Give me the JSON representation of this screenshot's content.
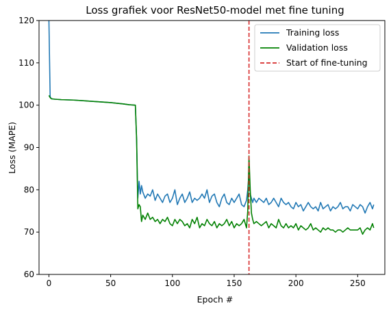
{
  "chart_data": {
    "type": "line",
    "title": "Loss grafiek voor ResNet50-model met fine tuning",
    "xlabel": "Epoch #",
    "ylabel": "Loss (MAPE)",
    "xlim": [
      -8,
      272
    ],
    "ylim": [
      60,
      120
    ],
    "xticks": [
      0,
      50,
      100,
      150,
      200,
      250
    ],
    "yticks": [
      60,
      70,
      80,
      90,
      100,
      110,
      120
    ],
    "grid": false,
    "legend_position": "top-right",
    "vline": {
      "x": 162,
      "name": "Start of fine-tuning",
      "color": "#d62728",
      "style": "dashed"
    },
    "series": [
      {
        "name": "Training loss",
        "color": "#1f77b4",
        "x": [
          0,
          1,
          2,
          5,
          10,
          20,
          30,
          40,
          50,
          60,
          65,
          70,
          71,
          72,
          73,
          74,
          75,
          76,
          78,
          80,
          82,
          84,
          86,
          88,
          90,
          92,
          94,
          96,
          98,
          100,
          102,
          104,
          106,
          108,
          110,
          112,
          114,
          116,
          118,
          120,
          122,
          124,
          126,
          128,
          130,
          132,
          134,
          136,
          138,
          140,
          142,
          144,
          146,
          148,
          150,
          152,
          154,
          156,
          158,
          160,
          161,
          162,
          163,
          164,
          165,
          166,
          168,
          170,
          172,
          174,
          176,
          178,
          180,
          182,
          184,
          186,
          188,
          190,
          192,
          194,
          196,
          198,
          200,
          202,
          204,
          206,
          208,
          210,
          212,
          214,
          216,
          218,
          220,
          222,
          224,
          226,
          228,
          230,
          232,
          234,
          236,
          238,
          240,
          242,
          244,
          246,
          248,
          250,
          252,
          254,
          256,
          258,
          260,
          262,
          263
        ],
        "values": [
          120,
          102,
          101.5,
          101.4,
          101.3,
          101.2,
          101,
          100.8,
          100.6,
          100.3,
          100.1,
          100,
          92,
          78,
          82,
          79,
          81,
          79.5,
          78,
          79,
          78.5,
          80,
          77.5,
          79,
          78,
          77,
          78.5,
          79,
          77,
          78,
          80,
          76.5,
          78,
          79,
          77,
          78,
          79.5,
          77,
          78,
          77.5,
          78,
          79,
          78,
          80,
          77,
          78.5,
          79,
          77,
          76,
          78,
          79,
          77,
          76.5,
          78,
          77,
          78,
          79,
          76.5,
          76,
          77.5,
          80,
          84,
          79,
          78,
          77,
          78,
          77,
          78,
          77.5,
          77,
          78,
          76.5,
          77,
          78,
          77,
          76,
          78,
          77,
          76.5,
          77,
          76,
          75.5,
          77,
          76,
          76.5,
          75,
          76,
          77,
          76,
          75.5,
          76,
          75,
          77,
          75.5,
          76,
          76.5,
          75,
          76,
          75.5,
          76,
          77,
          75.5,
          76,
          76,
          75,
          76.5,
          76,
          75.5,
          76.5,
          76,
          74.5,
          76,
          77,
          75.5,
          76.5
        ]
      },
      {
        "name": "Validation loss",
        "color": "#008000",
        "x": [
          0,
          1,
          2,
          5,
          10,
          20,
          30,
          40,
          50,
          60,
          65,
          70,
          71,
          72,
          73,
          74,
          75,
          76,
          78,
          80,
          82,
          84,
          86,
          88,
          90,
          92,
          94,
          96,
          98,
          100,
          102,
          104,
          106,
          108,
          110,
          112,
          114,
          116,
          118,
          120,
          122,
          124,
          126,
          128,
          130,
          132,
          134,
          136,
          138,
          140,
          142,
          144,
          146,
          148,
          150,
          152,
          154,
          156,
          158,
          160,
          161,
          162,
          163,
          164,
          165,
          166,
          168,
          170,
          172,
          174,
          176,
          178,
          180,
          182,
          184,
          186,
          188,
          190,
          192,
          194,
          196,
          198,
          200,
          202,
          204,
          206,
          208,
          210,
          212,
          214,
          216,
          218,
          220,
          222,
          224,
          226,
          228,
          230,
          232,
          234,
          236,
          238,
          240,
          242,
          244,
          246,
          248,
          250,
          252,
          254,
          256,
          258,
          260,
          262,
          263
        ],
        "values": [
          102.3,
          101.8,
          101.5,
          101.4,
          101.3,
          101.2,
          101,
          100.8,
          100.6,
          100.3,
          100.1,
          100,
          92,
          75.5,
          76.5,
          76,
          72.5,
          74,
          73,
          74.5,
          73,
          73.5,
          72.5,
          73,
          72,
          73,
          72.5,
          73.5,
          72,
          71.5,
          73,
          72,
          73,
          72.5,
          71.5,
          72,
          71,
          73,
          72,
          73.5,
          71,
          72,
          71.5,
          73,
          72,
          71.5,
          72.5,
          71,
          72,
          71.5,
          72,
          73,
          71.5,
          72.5,
          71,
          72,
          71.5,
          72,
          73,
          71,
          75,
          88,
          80,
          74.5,
          73,
          72,
          72.5,
          72,
          71.5,
          72,
          72.5,
          71,
          72,
          71.5,
          71,
          73,
          71.5,
          71,
          72,
          71,
          71.5,
          71,
          72,
          70.5,
          71.5,
          71,
          70.5,
          71,
          72,
          70.5,
          71,
          70.5,
          70,
          71,
          70.5,
          71,
          70.5,
          70.5,
          70,
          70.5,
          70.5,
          70,
          70.5,
          71,
          70.5,
          70.5,
          70.5,
          70.5,
          71,
          69.5,
          70.5,
          71,
          70.5,
          72,
          71
        ]
      }
    ]
  }
}
